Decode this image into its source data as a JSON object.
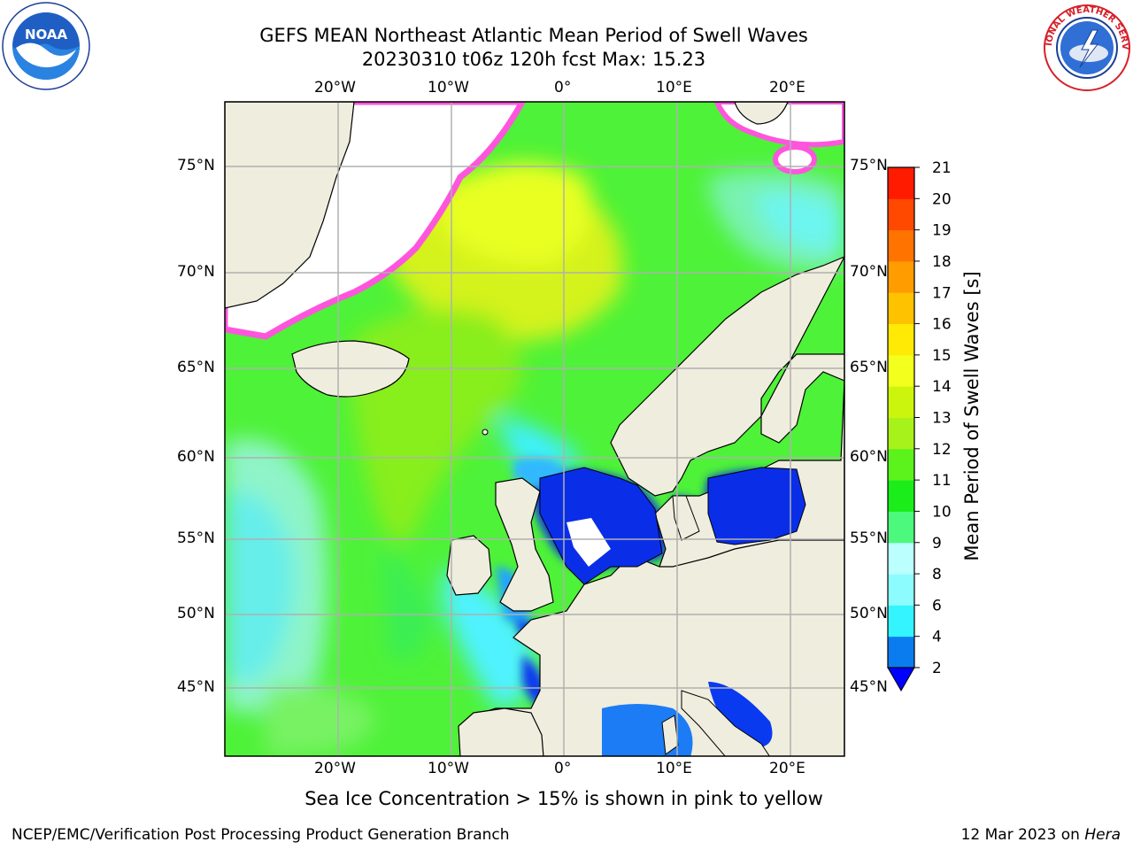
{
  "title": {
    "line1": "GEFS MEAN Northeast Atlantic Mean Period of Swell Waves",
    "line2": "20230310 t06z 120h fcst   Max: 15.23"
  },
  "map": {
    "region": "Northeast Atlantic",
    "lon_ticks": [
      "20°W",
      "10°W",
      "0°",
      "10°E",
      "20°E"
    ],
    "lat_ticks": [
      "75°N",
      "70°N",
      "65°N",
      "60°N",
      "55°N",
      "50°N",
      "45°N"
    ],
    "grid": true,
    "colors": {
      "land": "#efeddd",
      "ice_free_white": "#ffffff",
      "coast": "#000000",
      "grid": "#b0b0b0"
    }
  },
  "colorbar": {
    "label": "Mean Period of Swell Waves [s]",
    "ticks": [
      "2",
      "4",
      "6",
      "8",
      "9",
      "10",
      "11",
      "12",
      "13",
      "14",
      "15",
      "16",
      "17",
      "18",
      "19",
      "20",
      "21"
    ],
    "colors": [
      "#0a7cf0",
      "#00e8ff",
      "#33f4ff",
      "#8dfcff",
      "#bbffff",
      "#4cf97c",
      "#1aed1a",
      "#5cf21c",
      "#a8f21b",
      "#ccf50e",
      "#f3ff1d",
      "#ffea05",
      "#ffc200",
      "#ff9c00",
      "#ff7300",
      "#ff4800",
      "#ff1b00"
    ],
    "under_color": "#0000ff"
  },
  "subtitle": "Sea Ice Concentration > 15% is shown in pink to yellow",
  "footer": {
    "left": "NCEP/EMC/Verification Post Processing Product Generation Branch",
    "right_prefix": "12 Mar 2023 on ",
    "right_host": "Hera"
  },
  "logos": {
    "left": "NOAA",
    "right": "NATIONAL WEATHER SERVICE"
  }
}
